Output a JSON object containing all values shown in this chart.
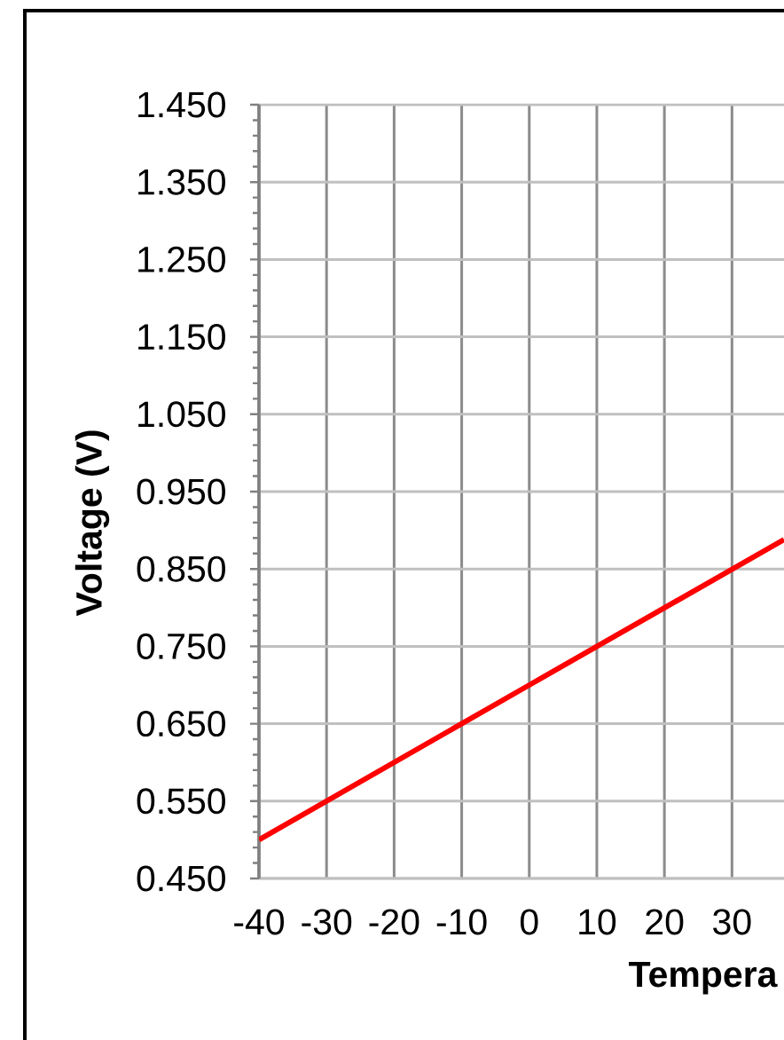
{
  "chart_data": {
    "type": "line",
    "xlabel": "Tempera",
    "ylabel": "Voltage (V)",
    "x": [
      -40,
      0,
      37.7
    ],
    "values": [
      0.5,
      0.7,
      0.888
    ],
    "color": "#ff0000",
    "xlim": [
      -40,
      37.7
    ],
    "ylim": [
      0.45,
      1.45
    ],
    "xticks": [
      -40,
      -30,
      -20,
      -10,
      0,
      10,
      20,
      30
    ],
    "yticks": [
      {
        "value": 0.45,
        "label": "0.450"
      },
      {
        "value": 0.55,
        "label": "0.550"
      },
      {
        "value": 0.65,
        "label": "0.650"
      },
      {
        "value": 0.75,
        "label": "0.750"
      },
      {
        "value": 0.85,
        "label": "0.850"
      },
      {
        "value": 0.95,
        "label": "0.950"
      },
      {
        "value": 1.05,
        "label": "1.050"
      },
      {
        "value": 1.15,
        "label": "1.150"
      },
      {
        "value": 1.25,
        "label": "1.250"
      },
      {
        "value": 1.35,
        "label": "1.350"
      },
      {
        "value": 1.45,
        "label": "1.450"
      }
    ],
    "grid": true
  }
}
